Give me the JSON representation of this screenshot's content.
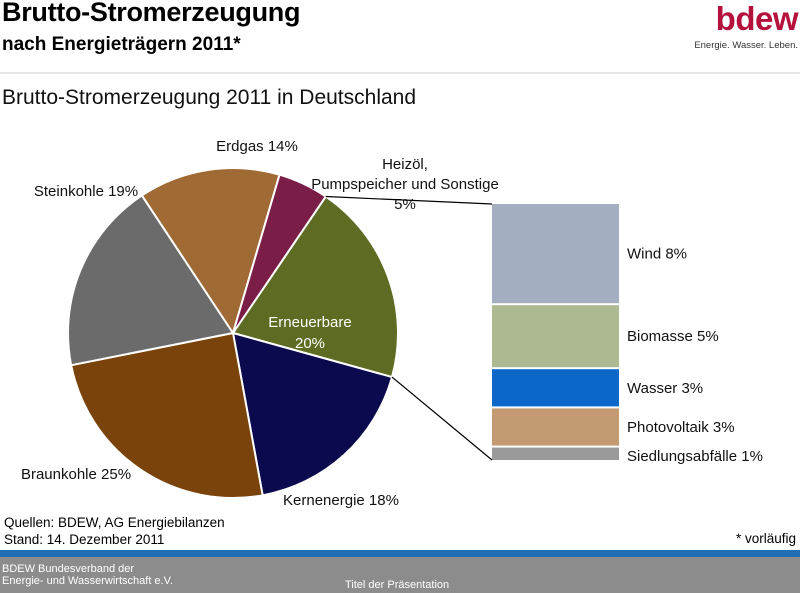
{
  "header": {
    "title": "Brutto-Stromerzeugung",
    "subtitle": "nach Energieträgern 2011*",
    "logo_word": "bdew",
    "logo_tagline": "Energie. Wasser. Leben."
  },
  "chart_data": {
    "type": "pie",
    "title": "Brutto-Stromerzeugung 2011 in Deutschland",
    "slices": [
      {
        "label": "Erneuerbare 20%",
        "value": 20,
        "color": "#5e6b22"
      },
      {
        "label": "Kernenergie 18%",
        "value": 18,
        "color": "#0c0a4e"
      },
      {
        "label": "Braunkohle 25%",
        "value": 25,
        "color": "#7a430c"
      },
      {
        "label": "Steinkohle 19%",
        "value": 19,
        "color": "#6b6b6b"
      },
      {
        "label": "Erdgas 14%",
        "value": 14,
        "color": "#a06a34"
      },
      {
        "label": "Heizöl, Pumpspeicher und Sonstige 5%",
        "value": 5,
        "color": "#7a1e48"
      }
    ],
    "breakdown": {
      "of": "Erneuerbare 20%",
      "type": "stacked-bar",
      "segments": [
        {
          "label": "Wind 8%",
          "value": 8,
          "color": "#a3afc0"
        },
        {
          "label": "Biomasse 5%",
          "value": 5,
          "color": "#adb991"
        },
        {
          "label": "Wasser 3%",
          "value": 3,
          "color": "#0d67c9"
        },
        {
          "label": "Photovoltaik 3%",
          "value": 3,
          "color": "#c49a72"
        },
        {
          "label": "Siedlungsabfälle 1%",
          "value": 1,
          "color": "#9a9a9a"
        }
      ]
    }
  },
  "sources": {
    "line1": "Quellen: BDEW,  AG Energiebilanzen",
    "line2": "Stand: 14. Dezember 2011"
  },
  "footnote": "* vorläufig",
  "footer": {
    "org_line1": "BDEW Bundesverband der",
    "org_line2": "Energie- und Wasserwirtschaft e.V.",
    "presentation": "Titel der Präsentation"
  }
}
